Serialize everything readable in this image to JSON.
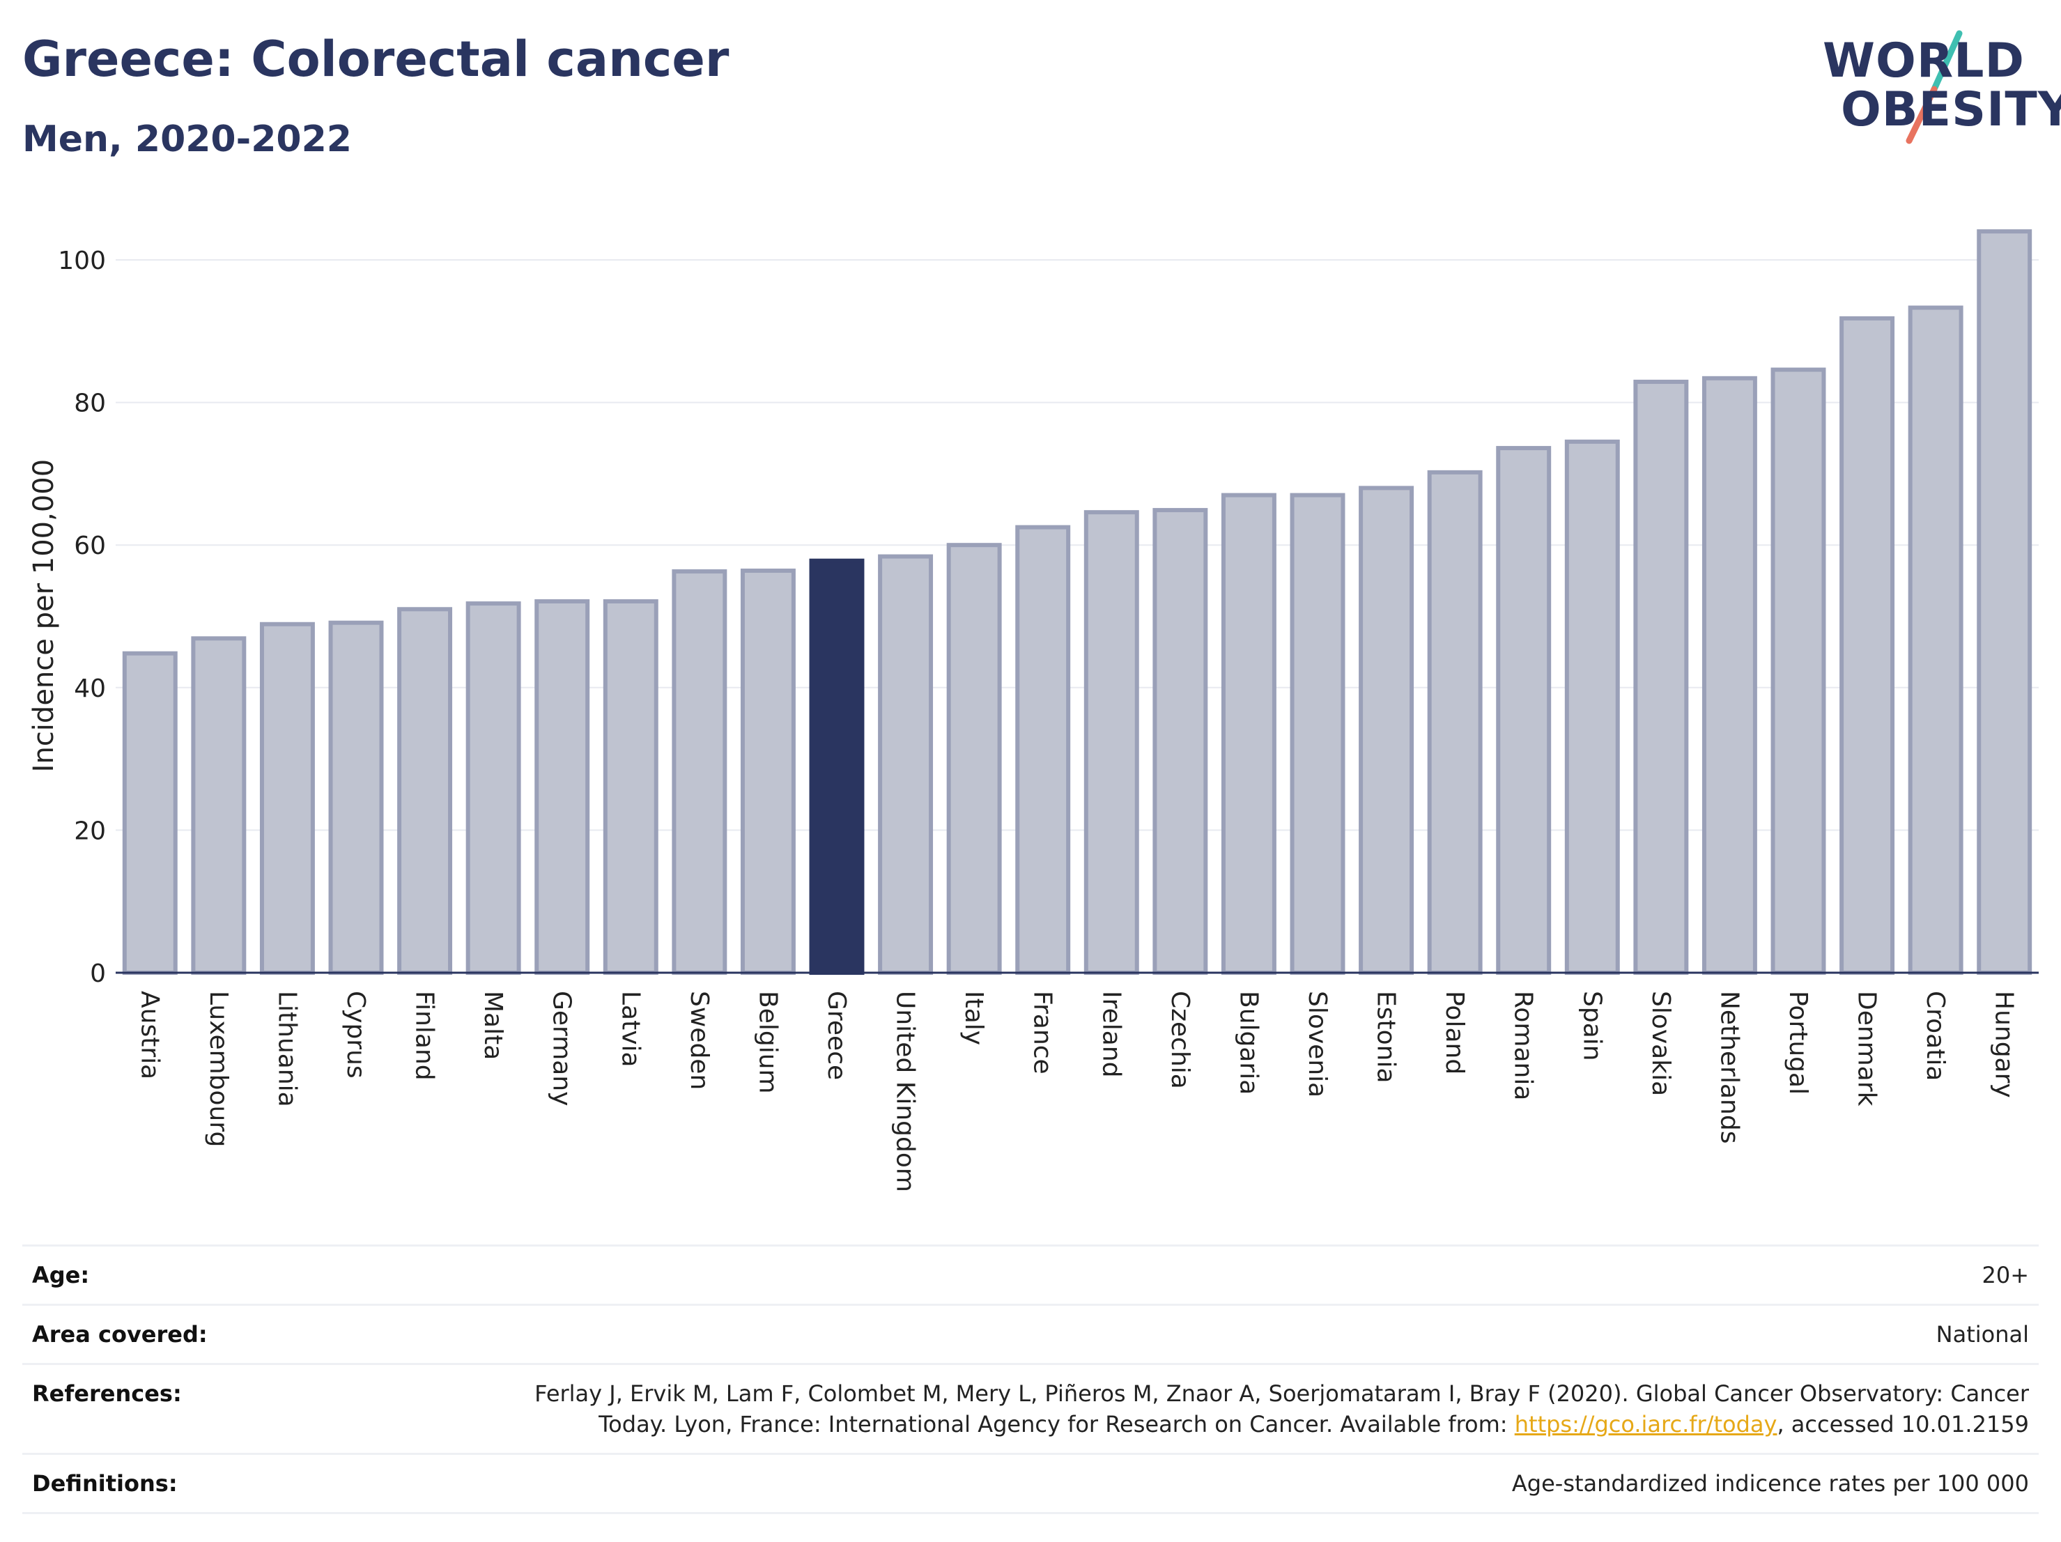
{
  "header": {
    "title": "Greece: Colorectal cancer",
    "subtitle": "Men, 2020-2022"
  },
  "logo": {
    "line1": "WORLD",
    "line2": "OBESITY"
  },
  "chart_data": {
    "type": "bar",
    "ylabel": "Incidence per 100,000",
    "ylim": [
      0,
      108
    ],
    "yticks": [
      0,
      20,
      40,
      60,
      80,
      100
    ],
    "grid": true,
    "highlight": "Greece",
    "colors": {
      "bar": "#bfc3d0",
      "bar_edge": "#9aa0b8",
      "highlight": "#2a3560"
    },
    "categories": [
      "Austria",
      "Luxembourg",
      "Lithuania",
      "Cyprus",
      "Finland",
      "Malta",
      "Germany",
      "Latvia",
      "Sweden",
      "Belgium",
      "Greece",
      "United Kingdom",
      "Italy",
      "France",
      "Ireland",
      "Czechia",
      "Bulgaria",
      "Slovenia",
      "Estonia",
      "Poland",
      "Romania",
      "Spain",
      "Slovakia",
      "Netherlands",
      "Portugal",
      "Denmark",
      "Croatia",
      "Hungary"
    ],
    "values": [
      44.8,
      46.9,
      48.9,
      49.1,
      51.0,
      51.8,
      52.1,
      52.1,
      56.3,
      56.4,
      57.8,
      58.4,
      60.0,
      62.5,
      64.6,
      64.9,
      67.0,
      67.0,
      68.0,
      70.2,
      73.6,
      74.5,
      82.9,
      83.4,
      84.6,
      91.8,
      93.3,
      104.0
    ]
  },
  "meta": {
    "age_label": "Age:",
    "age_value": "20+",
    "area_label": "Area covered:",
    "area_value": "National",
    "references_label": "References:",
    "references_line1": "Ferlay J, Ervik M, Lam F, Colombet M, Mery L, Piñeros M, Znaor A, Soerjomataram I, Bray F (2020). Global Cancer Observatory: Cancer",
    "references_line2_pre": "Today. Lyon, France: International Agency for Research on Cancer. Available from: ",
    "references_link": "https://gco.iarc.fr/today",
    "references_line2_post": ", accessed 10.01.2159",
    "definitions_label": "Definitions:",
    "definitions_value": "Age-standardized indicence rates per 100 000"
  }
}
